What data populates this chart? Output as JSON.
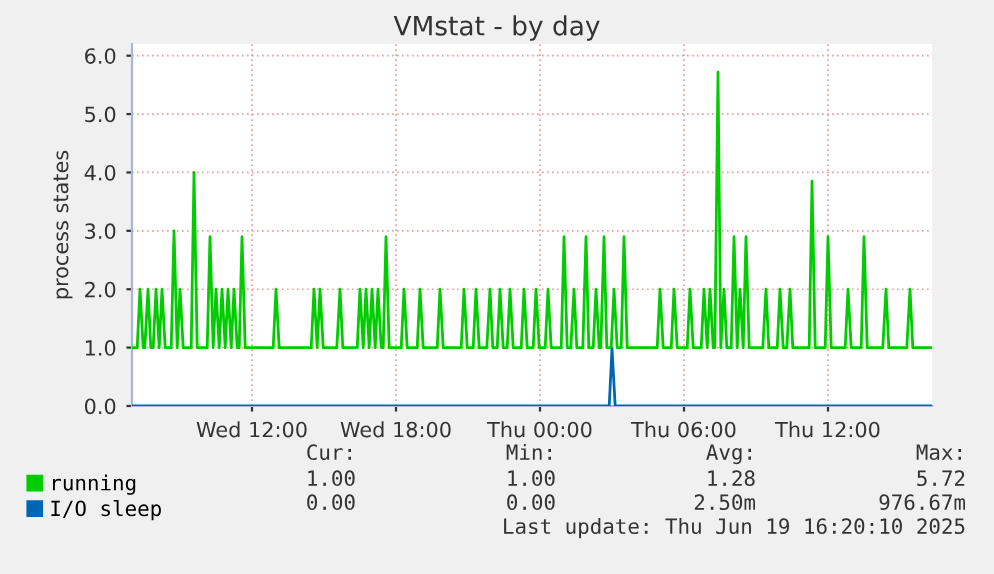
{
  "chart_data": {
    "type": "line",
    "title": "VMstat - by day",
    "ylabel": "process states",
    "x": [
      "2025-06-18T07:00",
      "2025-06-18T07:13",
      "2025-06-18T07:20",
      "2025-06-18T07:28",
      "2025-06-18T07:32",
      "2025-06-18T07:40",
      "2025-06-18T07:47",
      "2025-06-18T07:53",
      "2025-06-18T08:00",
      "2025-06-18T08:08",
      "2025-06-18T08:15",
      "2025-06-18T08:23",
      "2025-06-18T08:38",
      "2025-06-18T08:45",
      "2025-06-18T08:53",
      "2025-06-18T09:00",
      "2025-06-18T09:08",
      "2025-06-18T09:28",
      "2025-06-18T09:35",
      "2025-06-18T09:43",
      "2025-06-18T10:08",
      "2025-06-18T10:15",
      "2025-06-18T10:23",
      "2025-06-18T10:30",
      "2025-06-18T10:38",
      "2025-06-18T10:45",
      "2025-06-18T10:53",
      "2025-06-18T11:00",
      "2025-06-18T11:08",
      "2025-06-18T11:15",
      "2025-06-18T11:23",
      "2025-06-18T11:28",
      "2025-06-18T11:35",
      "2025-06-18T11:43",
      "2025-06-18T12:53",
      "2025-06-18T13:00",
      "2025-06-18T13:08",
      "2025-06-18T14:28",
      "2025-06-18T14:35",
      "2025-06-18T14:43",
      "2025-06-18T14:50",
      "2025-06-18T14:58",
      "2025-06-18T15:32",
      "2025-06-18T15:40",
      "2025-06-18T15:47",
      "2025-06-18T16:23",
      "2025-06-18T16:30",
      "2025-06-18T16:38",
      "2025-06-18T16:45",
      "2025-06-18T16:53",
      "2025-06-18T17:00",
      "2025-06-18T17:08",
      "2025-06-18T17:15",
      "2025-06-18T17:23",
      "2025-06-18T17:28",
      "2025-06-18T17:35",
      "2025-06-18T17:43",
      "2025-06-18T18:13",
      "2025-06-18T18:20",
      "2025-06-18T18:28",
      "2025-06-18T18:53",
      "2025-06-18T19:00",
      "2025-06-18T19:08",
      "2025-06-18T19:43",
      "2025-06-18T19:50",
      "2025-06-18T19:58",
      "2025-06-18T20:43",
      "2025-06-18T20:50",
      "2025-06-18T20:58",
      "2025-06-18T21:13",
      "2025-06-18T21:20",
      "2025-06-18T21:28",
      "2025-06-18T21:47",
      "2025-06-18T21:55",
      "2025-06-18T22:02",
      "2025-06-18T22:13",
      "2025-06-18T22:20",
      "2025-06-18T22:28",
      "2025-06-18T22:38",
      "2025-06-18T22:45",
      "2025-06-18T22:53",
      "2025-06-18T23:13",
      "2025-06-18T23:20",
      "2025-06-18T23:28",
      "2025-06-18T23:43",
      "2025-06-18T23:50",
      "2025-06-18T23:58",
      "2025-06-19T00:13",
      "2025-06-19T00:20",
      "2025-06-19T00:28",
      "2025-06-19T00:53",
      "2025-06-19T01:00",
      "2025-06-19T01:08",
      "2025-06-19T01:17",
      "2025-06-19T01:25",
      "2025-06-19T01:32",
      "2025-06-19T01:47",
      "2025-06-19T01:55",
      "2025-06-19T02:02",
      "2025-06-19T02:13",
      "2025-06-19T02:20",
      "2025-06-19T02:28",
      "2025-06-19T02:32",
      "2025-06-19T02:40",
      "2025-06-19T02:47",
      "2025-06-19T02:58",
      "2025-06-19T03:05",
      "2025-06-19T03:13",
      "2025-06-19T03:23",
      "2025-06-19T03:30",
      "2025-06-19T03:38",
      "2025-06-19T04:53",
      "2025-06-19T05:00",
      "2025-06-19T05:08",
      "2025-06-19T05:28",
      "2025-06-19T05:35",
      "2025-06-19T05:43",
      "2025-06-19T06:08",
      "2025-06-19T06:15",
      "2025-06-19T06:23",
      "2025-06-19T06:43",
      "2025-06-19T06:50",
      "2025-06-19T06:58",
      "2025-06-19T07:05",
      "2025-06-19T07:13",
      "2025-06-19T07:17",
      "2025-06-19T07:25",
      "2025-06-19T07:32",
      "2025-06-19T07:40",
      "2025-06-19T07:47",
      "2025-06-19T07:58",
      "2025-06-19T08:05",
      "2025-06-19T08:13",
      "2025-06-19T08:20",
      "2025-06-19T08:28",
      "2025-06-19T08:35",
      "2025-06-19T08:43",
      "2025-06-19T09:17",
      "2025-06-19T09:25",
      "2025-06-19T09:32",
      "2025-06-19T09:53",
      "2025-06-19T10:00",
      "2025-06-19T10:08",
      "2025-06-19T10:17",
      "2025-06-19T10:25",
      "2025-06-19T10:32",
      "2025-06-19T11:13",
      "2025-06-19T11:20",
      "2025-06-19T11:28",
      "2025-06-19T11:53",
      "2025-06-19T12:00",
      "2025-06-19T12:08",
      "2025-06-19T12:43",
      "2025-06-19T12:50",
      "2025-06-19T12:58",
      "2025-06-19T13:23",
      "2025-06-19T13:30",
      "2025-06-19T13:38",
      "2025-06-19T14:17",
      "2025-06-19T14:25",
      "2025-06-19T14:32",
      "2025-06-19T15:17",
      "2025-06-19T15:25",
      "2025-06-19T15:32",
      "2025-06-19T16:20"
    ],
    "series": [
      {
        "name": "running",
        "color": "#00cc00",
        "values": [
          1,
          1,
          2,
          1,
          1,
          2,
          1,
          1,
          2,
          1,
          2,
          1,
          1,
          3,
          1,
          2,
          1,
          1,
          4,
          1,
          1,
          2.9,
          1,
          2,
          1,
          2,
          1,
          2,
          1,
          2,
          1,
          1,
          2.9,
          1,
          1,
          2,
          1,
          1,
          2,
          1,
          2,
          1,
          1,
          2,
          1,
          1,
          2,
          1,
          2,
          1,
          2,
          1,
          2,
          1,
          1,
          2.9,
          1,
          1,
          2,
          1,
          1,
          2,
          1,
          1,
          2,
          1,
          1,
          2,
          1,
          1,
          2,
          1,
          1,
          2,
          1,
          1,
          2,
          1,
          1,
          2,
          1,
          1,
          2,
          1,
          1,
          2,
          1,
          1,
          2,
          1,
          1,
          2.9,
          1,
          1,
          2,
          1,
          1,
          2.9,
          1,
          1,
          2,
          1,
          1,
          2.9,
          1,
          1,
          2,
          1,
          1,
          2.9,
          1,
          1,
          2,
          1,
          1,
          2,
          1,
          1,
          2,
          1,
          1,
          2,
          1,
          2,
          1,
          1,
          5.72,
          1,
          2,
          1,
          1,
          2.9,
          1,
          2,
          1,
          2.9,
          1,
          1,
          2,
          1,
          1,
          2,
          1,
          1,
          2,
          1,
          1,
          3.85,
          1,
          1,
          2.9,
          1,
          1,
          2,
          1,
          1,
          2.9,
          1,
          1,
          2,
          1,
          1,
          2,
          1,
          1
        ]
      },
      {
        "name": "I/O sleep",
        "color": "#0066b3",
        "x": [
          "2025-06-18T07:00",
          "2025-06-19T02:53",
          "2025-06-19T03:00",
          "2025-06-19T03:08",
          "2025-06-19T16:20"
        ],
        "values": [
          0,
          0,
          0.98,
          0,
          0
        ]
      }
    ],
    "xlim": [
      "2025-06-18T07:00",
      "2025-06-19T16:20"
    ],
    "xticks": [
      {
        "value": "2025-06-18T12:00",
        "label": "Wed 12:00"
      },
      {
        "value": "2025-06-18T18:00",
        "label": "Wed 18:00"
      },
      {
        "value": "2025-06-19T00:00",
        "label": "Thu 00:00"
      },
      {
        "value": "2025-06-19T06:00",
        "label": "Thu 06:00"
      },
      {
        "value": "2025-06-19T12:00",
        "label": "Thu 12:00"
      }
    ],
    "ylim": [
      0,
      6.2
    ],
    "yticks": [
      {
        "value": 0,
        "label": "0.0"
      },
      {
        "value": 1,
        "label": "1.0"
      },
      {
        "value": 2,
        "label": "2.0"
      },
      {
        "value": 3,
        "label": "3.0"
      },
      {
        "value": 4,
        "label": "4.0"
      },
      {
        "value": 5,
        "label": "5.0"
      },
      {
        "value": 6,
        "label": "6.0"
      }
    ],
    "grid": true,
    "legend": "bottom",
    "marker": "none",
    "line_style": "solid",
    "annotations": [
      "Cur:",
      "Min:",
      "Avg:",
      "Max:",
      "1.00",
      "1.00",
      "1.28",
      "5.72",
      "0.00",
      "0.00",
      "2.50m",
      "976.67m",
      "Last update: Thu Jun 19 16:20:10 2025"
    ]
  }
}
